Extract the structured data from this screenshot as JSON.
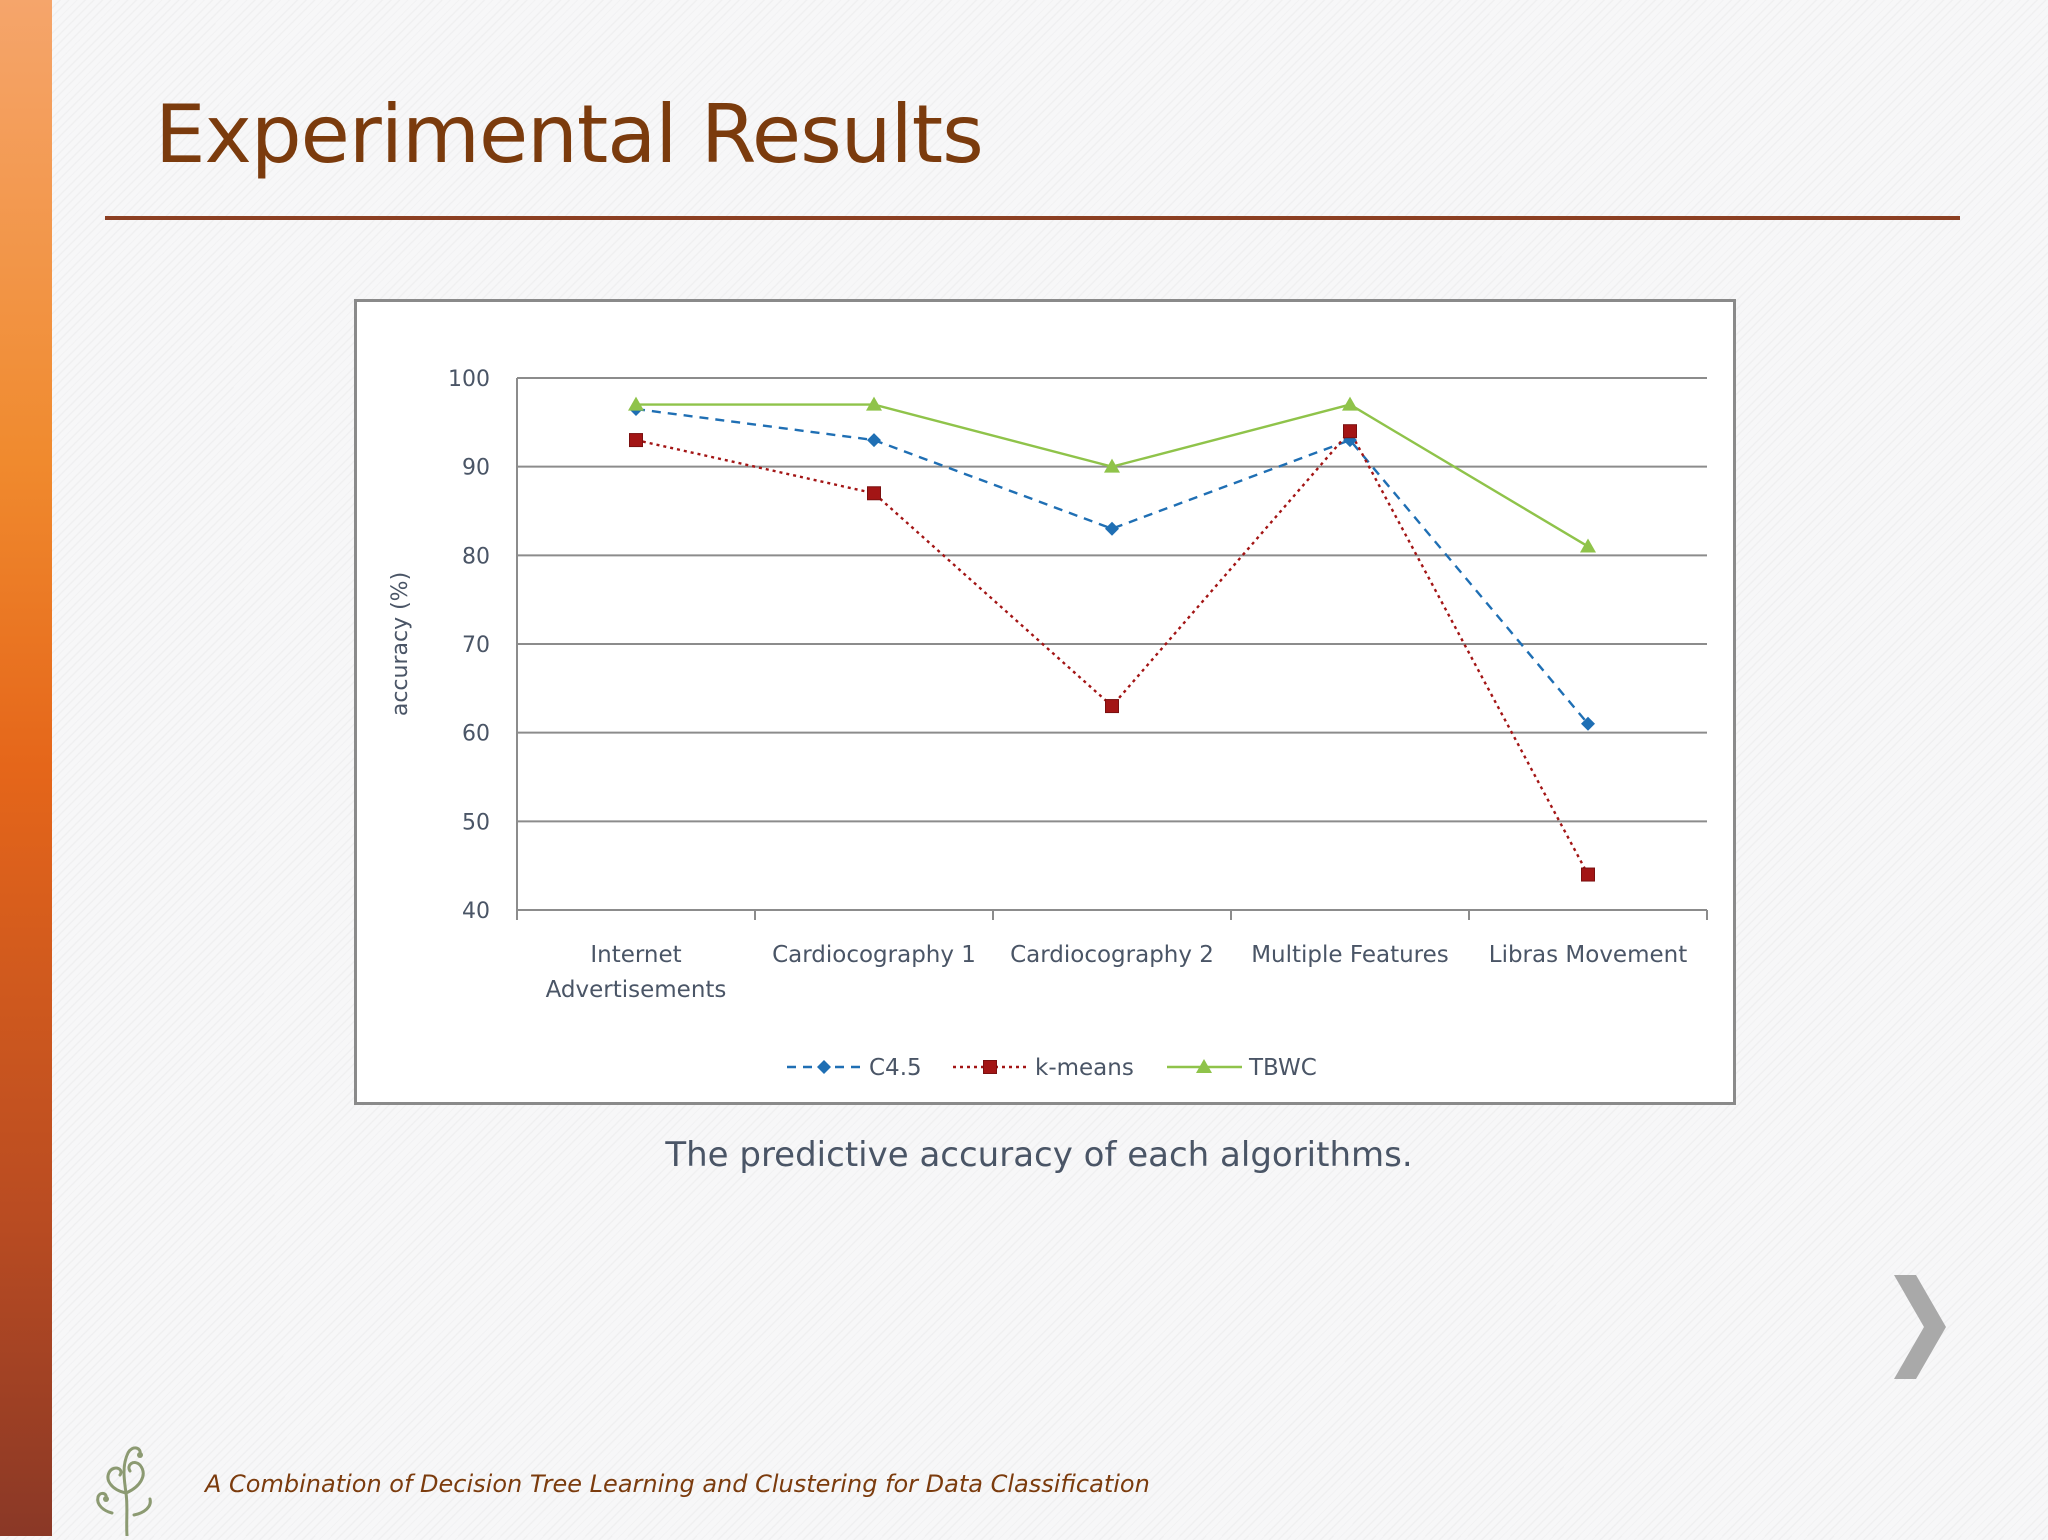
{
  "slide": {
    "title": "Experimental Results",
    "caption": "The predictive accuracy of each algorithms.",
    "footer": "A Combination of Decision Tree Learning and Clustering for Data Classification",
    "next_icon": "chevron-right-icon",
    "logo_icon": "tree-swirl-logo",
    "colors": {
      "title": "#7b3b0d",
      "rule": "#8c3f22",
      "accent_bar": "#e5661a"
    }
  },
  "chart_data": {
    "type": "line",
    "categories": [
      [
        "Internet",
        "Advertisements"
      ],
      [
        "Cardiocography 1"
      ],
      [
        "Cardiocography 2"
      ],
      [
        "Multiple Features"
      ],
      [
        "Libras Movement"
      ]
    ],
    "ylabel": "accuracy (%)",
    "ylim": [
      40,
      100
    ],
    "yticks": [
      40,
      50,
      60,
      70,
      80,
      90,
      100
    ],
    "grid": true,
    "legend_position": "bottom",
    "series": [
      {
        "name": "C4.5",
        "values": [
          96.5,
          93,
          83,
          93,
          61
        ],
        "color": "#1f6fb4",
        "marker": "diamond",
        "dash": "dashed"
      },
      {
        "name": "k-means",
        "values": [
          93,
          87,
          63,
          94,
          44
        ],
        "color": "#a31515",
        "marker": "square",
        "dash": "dotted"
      },
      {
        "name": "TBWC",
        "values": [
          97,
          97,
          90,
          97,
          81
        ],
        "color": "#8fc34a",
        "marker": "triangle",
        "dash": "solid"
      }
    ]
  }
}
